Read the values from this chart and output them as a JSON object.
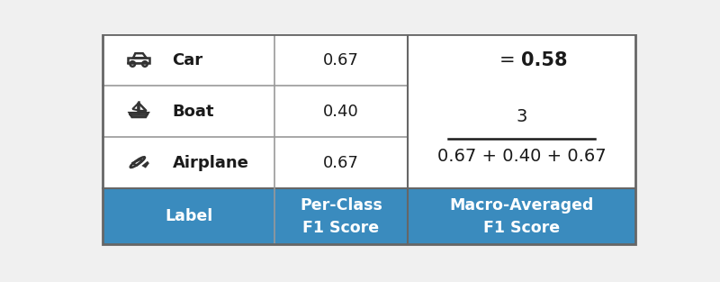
{
  "header_bg_color": "#3A8BBE",
  "header_text_color": "#FFFFFF",
  "cell_bg_color": "#FFFFFF",
  "table_border_color": "#666666",
  "inner_border_color": "#999999",
  "col1_header": "Label",
  "col2_header": "Per-Class\nF1 Score",
  "col3_header": "Macro-Averaged\nF1 Score",
  "rows": [
    {
      "label": "Airplane",
      "score": "0.67"
    },
    {
      "label": "Boat",
      "score": "0.40"
    },
    {
      "label": "Car",
      "score": "0.67"
    }
  ],
  "macro_numerator": "0.67 + 0.40 + 0.67",
  "macro_denominator": "3",
  "macro_result_eq": "= ",
  "macro_result_val": "0.58",
  "header_fontsize": 12.5,
  "body_fontsize": 13,
  "score_fontsize": 13,
  "formula_fontsize": 14,
  "result_fontsize": 15,
  "background_color": "#FFFFFF",
  "fig_bg_color": "#F0F0F0"
}
